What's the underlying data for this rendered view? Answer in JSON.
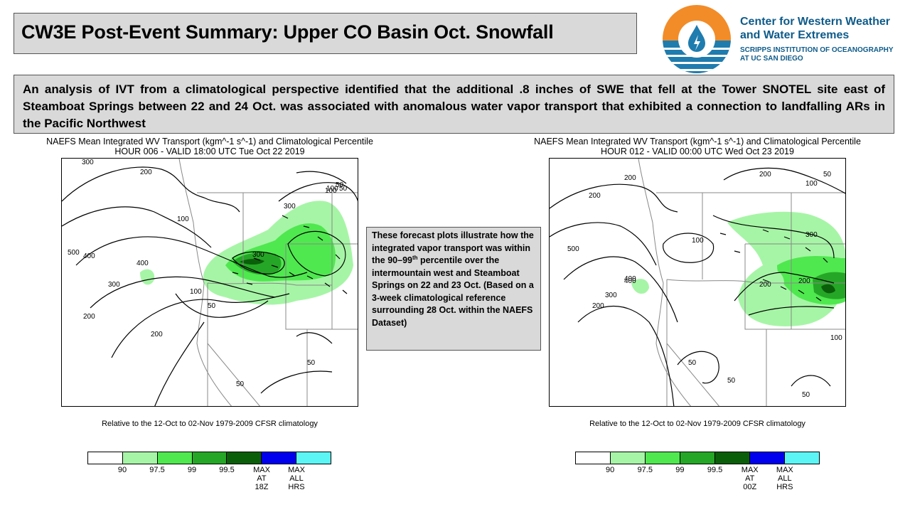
{
  "title": "CW3E Post-Event Summary: Upper CO Basin Oct. Snowfall",
  "logo": {
    "line1": "Center for Western Weather",
    "line2": "and Water Extremes",
    "line3": "SCRIPPS INSTITUTION OF OCEANOGRAPHY",
    "line4": "AT UC SAN DIEGO",
    "colors": {
      "orange": "#f28c28",
      "blue": "#1f7cae",
      "dark_blue": "#0e5b8a"
    }
  },
  "summary": "An analysis of IVT from a climatological perspective identified that the additional .8 inches of SWE that fell at the Tower SNOTEL site east of Steamboat Springs between 22 and 24 Oct. was associated with anomalous water vapor transport that exhibited a connection to landfalling ARs in the Pacific Northwest",
  "note": {
    "part1": "These forecast plots illustrate how the integrated vapor transport was within the 90–99",
    "superscript": "th",
    "part2": " percentile over the intermountain west and Steamboat Springs on 22 and 23 Oct. (Based on a 3-week climatological reference surrounding 28 Oct. within the NAEFS Dataset)"
  },
  "left_plot": {
    "title": "NAEFS Mean Integrated WV Transport (kgm^-1 s^-1) and Climatological Percentile",
    "subtitle": "HOUR 006 - VALID 18:00 UTC Tue Oct 22 2019",
    "climatology": "Relative to the 12-Oct to 02-Nov 1979-2009 CFSR climatology",
    "contour_labels": [
      "300",
      "200",
      "100",
      "50",
      "100",
      "500",
      "400",
      "400",
      "300",
      "200",
      "100",
      "50",
      "300",
      "300",
      "200",
      "50",
      "50",
      "50",
      "100"
    ],
    "legend_labels": [
      "90",
      "97.5",
      "99",
      "99.5",
      "MAX\nAT\n18Z",
      "MAX\nALL\nHRS"
    ]
  },
  "right_plot": {
    "title": "NAEFS Mean Integrated WV Transport (kgm^-1 s^-1) and Climatological Percentile",
    "subtitle": "HOUR 012 - VALID 00:00 UTC Wed Oct 23 2019",
    "climatology": "Relative to the 12-Oct to 02-Nov 1979-2009 CFSR climatology",
    "contour_labels": [
      "200",
      "200",
      "100",
      "50",
      "200",
      "500",
      "400",
      "300",
      "200",
      "100",
      "300",
      "200",
      "200",
      "400",
      "50",
      "50",
      "100",
      "50"
    ],
    "legend_labels": [
      "90",
      "97.5",
      "99",
      "99.5",
      "MAX\nAT\n00Z",
      "MAX\nALL\nHRS"
    ]
  },
  "legend_colors": [
    "#ffffff",
    "#a6f5a6",
    "#4fe84f",
    "#26a626",
    "#0a5e0a",
    "#0000ee",
    "#5cf5f5"
  ]
}
